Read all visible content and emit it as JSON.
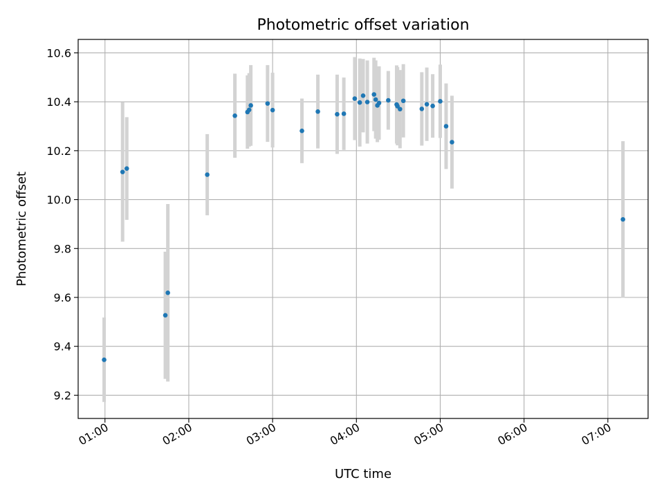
{
  "chart_data": {
    "type": "scatter",
    "title": "Photometric offset variation",
    "xlabel": "UTC time",
    "ylabel": "Photometric offset",
    "x_axis": {
      "unit": "hours UTC",
      "range": [
        0.68,
        7.48
      ],
      "ticks": [
        {
          "value": 1,
          "label": "01:00"
        },
        {
          "value": 2,
          "label": "02:00"
        },
        {
          "value": 3,
          "label": "03:00"
        },
        {
          "value": 4,
          "label": "04:00"
        },
        {
          "value": 5,
          "label": "05:00"
        },
        {
          "value": 6,
          "label": "06:00"
        },
        {
          "value": 7,
          "label": "07:00"
        }
      ]
    },
    "y_axis": {
      "range": [
        9.105,
        10.655
      ],
      "ticks": [
        {
          "value": 9.2,
          "label": "9.2"
        },
        {
          "value": 9.4,
          "label": "9.4"
        },
        {
          "value": 9.6,
          "label": "9.6"
        },
        {
          "value": 9.8,
          "label": "9.8"
        },
        {
          "value": 10.0,
          "label": "10.0"
        },
        {
          "value": 10.2,
          "label": "10.2"
        },
        {
          "value": 10.4,
          "label": "10.4"
        },
        {
          "value": 10.6,
          "label": "10.6"
        }
      ]
    },
    "grid": true,
    "colors": {
      "point": "#1f77b4",
      "errorbar": "#d3d3d3",
      "grid": "#b0b0b0"
    },
    "series": [
      {
        "points": [
          {
            "x": 0.99,
            "y": 9.345,
            "err": 0.173
          },
          {
            "x": 1.21,
            "y": 10.113,
            "err": 0.285
          },
          {
            "x": 1.26,
            "y": 10.127,
            "err": 0.21
          },
          {
            "x": 1.72,
            "y": 9.527,
            "err": 0.26
          },
          {
            "x": 1.75,
            "y": 9.619,
            "err": 0.363
          },
          {
            "x": 2.22,
            "y": 10.102,
            "err": 0.166
          },
          {
            "x": 2.55,
            "y": 10.343,
            "err": 0.172
          },
          {
            "x": 2.7,
            "y": 10.358,
            "err": 0.15
          },
          {
            "x": 2.72,
            "y": 10.367,
            "err": 0.15
          },
          {
            "x": 2.74,
            "y": 10.385,
            "err": 0.165
          },
          {
            "x": 2.94,
            "y": 10.393,
            "err": 0.157
          },
          {
            "x": 3.0,
            "y": 10.366,
            "err": 0.153
          },
          {
            "x": 3.35,
            "y": 10.281,
            "err": 0.132
          },
          {
            "x": 3.54,
            "y": 10.36,
            "err": 0.151
          },
          {
            "x": 3.77,
            "y": 10.349,
            "err": 0.162
          },
          {
            "x": 3.85,
            "y": 10.351,
            "err": 0.148
          },
          {
            "x": 3.98,
            "y": 10.413,
            "err": 0.17
          },
          {
            "x": 4.04,
            "y": 10.397,
            "err": 0.18
          },
          {
            "x": 4.08,
            "y": 10.425,
            "err": 0.15
          },
          {
            "x": 4.13,
            "y": 10.399,
            "err": 0.17
          },
          {
            "x": 4.21,
            "y": 10.43,
            "err": 0.15
          },
          {
            "x": 4.23,
            "y": 10.409,
            "err": 0.16
          },
          {
            "x": 4.25,
            "y": 10.385,
            "err": 0.15
          },
          {
            "x": 4.27,
            "y": 10.395,
            "err": 0.15
          },
          {
            "x": 4.38,
            "y": 10.406,
            "err": 0.12
          },
          {
            "x": 4.48,
            "y": 10.389,
            "err": 0.16
          },
          {
            "x": 4.49,
            "y": 10.382,
            "err": 0.16
          },
          {
            "x": 4.52,
            "y": 10.37,
            "err": 0.16
          },
          {
            "x": 4.56,
            "y": 10.404,
            "err": 0.15
          },
          {
            "x": 4.78,
            "y": 10.371,
            "err": 0.15
          },
          {
            "x": 4.84,
            "y": 10.39,
            "err": 0.15
          },
          {
            "x": 4.91,
            "y": 10.383,
            "err": 0.13
          },
          {
            "x": 5.0,
            "y": 10.402,
            "err": 0.15
          },
          {
            "x": 5.07,
            "y": 10.3,
            "err": 0.175
          },
          {
            "x": 5.14,
            "y": 10.235,
            "err": 0.19
          },
          {
            "x": 7.18,
            "y": 9.919,
            "err": 0.32
          }
        ]
      }
    ]
  }
}
